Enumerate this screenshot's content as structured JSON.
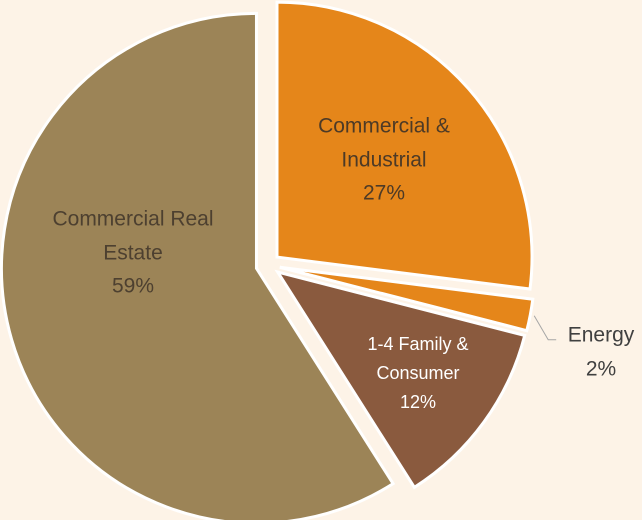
{
  "chart_data": {
    "type": "pie",
    "categories": [
      "Commercial & Industrial",
      "Energy",
      "1-4 Family & Consumer",
      "Commercial Real Estate"
    ],
    "values": [
      27,
      2,
      12,
      59
    ],
    "value_labels": [
      "27%",
      "2%",
      "12%",
      "59%"
    ],
    "colors": [
      "#e5861a",
      "#e5861a",
      "#8a5a3e",
      "#9c8457"
    ]
  }
}
